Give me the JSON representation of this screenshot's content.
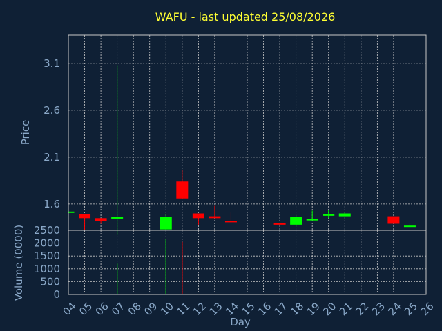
{
  "chart_data": [
    {
      "type": "candlestick",
      "title": "WAFU - last updated 25/08/2026",
      "ylabel": "Price",
      "xlabel": "Day",
      "ylim": [
        1.32,
        3.4
      ],
      "yticks": [
        1.6,
        2.1,
        2.6,
        3.1
      ],
      "ytick_labels": [
        "1.6",
        "2.1",
        "2.6",
        "3.1"
      ],
      "grid": true,
      "x_ticks": [
        "04",
        "05",
        "06",
        "07",
        "08",
        "09",
        "10",
        "11",
        "12",
        "13",
        "14",
        "15",
        "16",
        "17",
        "18",
        "19",
        "20",
        "21",
        "22",
        "23",
        "24",
        "25",
        "26"
      ],
      "candles": [
        {
          "day": "04",
          "open": 1.52,
          "high": 1.52,
          "low": 1.52,
          "close": 1.52
        },
        {
          "day": "05",
          "open": 1.49,
          "high": 1.49,
          "low": 1.32,
          "close": 1.45
        },
        {
          "day": "06",
          "open": 1.45,
          "high": 1.45,
          "low": 1.39,
          "close": 1.42
        },
        {
          "day": "07",
          "open": 1.45,
          "high": 3.08,
          "low": 1.27,
          "close": 1.46
        },
        {
          "day": "10",
          "open": 1.33,
          "high": 1.49,
          "low": 1.33,
          "close": 1.46
        },
        {
          "day": "11",
          "open": 1.84,
          "high": 1.96,
          "low": 1.66,
          "close": 1.66
        },
        {
          "day": "12",
          "open": 1.5,
          "high": 1.5,
          "low": 1.38,
          "close": 1.45
        },
        {
          "day": "13",
          "open": 1.47,
          "high": 1.58,
          "low": 1.45,
          "close": 1.45
        },
        {
          "day": "14",
          "open": 1.42,
          "high": 1.51,
          "low": 1.42,
          "close": 1.41
        },
        {
          "day": "17",
          "open": 1.4,
          "high": 1.4,
          "low": 1.38,
          "close": 1.38
        },
        {
          "day": "18",
          "open": 1.38,
          "high": 1.48,
          "low": 1.36,
          "close": 1.46
        },
        {
          "day": "19",
          "open": 1.44,
          "high": 1.53,
          "low": 1.43,
          "close": 1.44
        },
        {
          "day": "20",
          "open": 1.49,
          "high": 1.54,
          "low": 1.45,
          "close": 1.49
        },
        {
          "day": "21",
          "open": 1.47,
          "high": 1.51,
          "low": 1.47,
          "close": 1.5
        },
        {
          "day": "24",
          "open": 1.47,
          "high": 1.47,
          "low": 1.39,
          "close": 1.39
        },
        {
          "day": "25",
          "open": 1.36,
          "high": 1.39,
          "low": 1.36,
          "close": 1.37
        }
      ],
      "up_color": "#00ff00",
      "down_color": "#ff0000"
    },
    {
      "type": "bar",
      "ylabel": "Volume (0000)",
      "ylim": [
        0,
        2500
      ],
      "yticks": [
        0,
        500,
        1000,
        1500,
        2000,
        2500
      ],
      "ytick_labels": [
        "0",
        "500",
        "1000",
        "1500",
        "2000",
        "2500"
      ],
      "grid": true,
      "bars": [
        {
          "day": "07",
          "value": 1200,
          "color": "#00ff00"
        },
        {
          "day": "10",
          "value": 2150,
          "color": "#00ff00"
        },
        {
          "day": "11",
          "value": 2050,
          "color": "#ff0000"
        }
      ]
    }
  ]
}
